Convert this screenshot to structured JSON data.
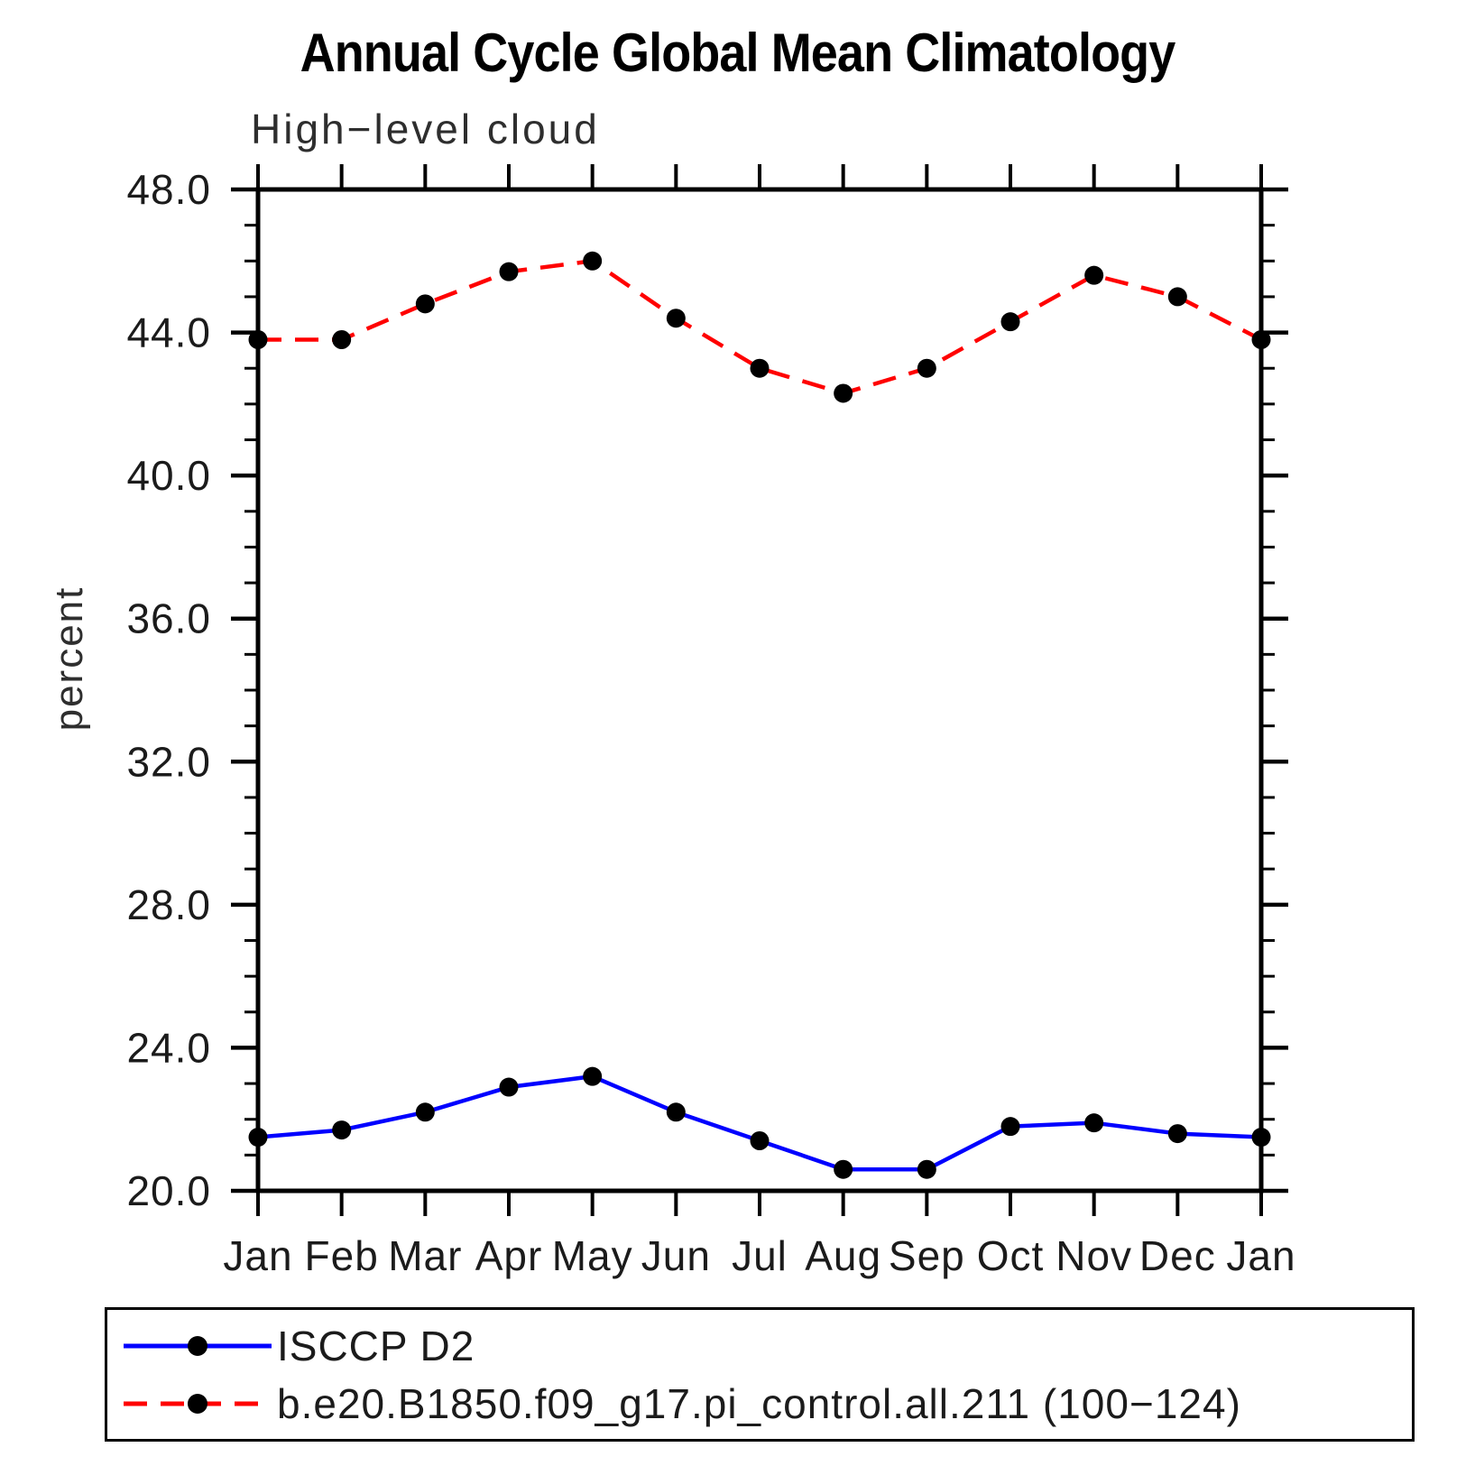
{
  "title": "Annual Cycle Global Mean Climatology",
  "subtitle": "High−level cloud",
  "chart_data": {
    "type": "line",
    "x_categories": [
      "Jan",
      "Feb",
      "Mar",
      "Apr",
      "May",
      "Jun",
      "Jul",
      "Aug",
      "Sep",
      "Oct",
      "Nov",
      "Dec",
      "Jan"
    ],
    "xlabel": "",
    "ylabel": "percent",
    "ylim": [
      20.0,
      48.0
    ],
    "ytick_major_interval": 4.0,
    "ytick_minor_interval": 1.0,
    "ytick_labels": [
      "20.0",
      "24.0",
      "28.0",
      "32.0",
      "36.0",
      "40.0",
      "44.0",
      "48.0"
    ],
    "grid": false,
    "legend_position": "bottom",
    "frame_color": "#000000",
    "marker": "filled-circle",
    "marker_color": "#000000",
    "series": [
      {
        "name": "ISCCP D2",
        "color": "#0000ff",
        "line_style": "solid",
        "values": [
          21.5,
          21.7,
          22.2,
          22.9,
          23.2,
          22.2,
          21.4,
          20.6,
          20.6,
          21.8,
          21.9,
          21.6,
          21.5
        ]
      },
      {
        "name": "b.e20.B1850.f09_g17.pi_control.all.211 (100−124)",
        "color": "#ff0000",
        "line_style": "dashed",
        "values": [
          43.8,
          43.8,
          44.8,
          45.7,
          46.0,
          44.4,
          43.0,
          42.3,
          43.0,
          44.3,
          45.6,
          45.0,
          43.8
        ]
      }
    ]
  }
}
